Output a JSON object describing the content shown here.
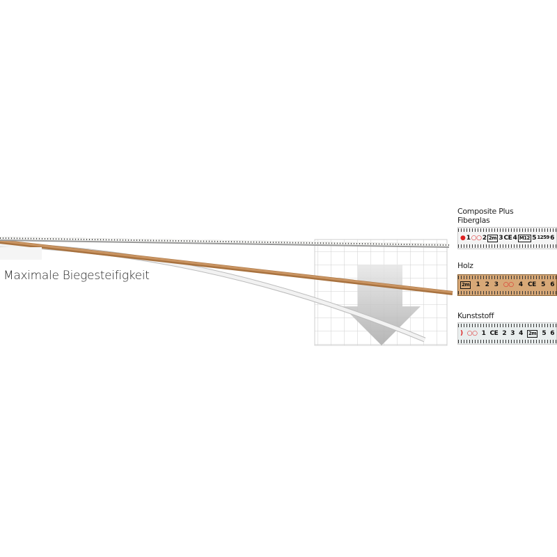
{
  "headline": "Maximale Biegesteifigkeit",
  "materials": [
    {
      "name_line1": "Composite Plus",
      "name_line2": "Fiberglas",
      "color": "#f4f4f4",
      "scale": [
        "●",
        "1",
        "○○",
        "2",
        "2m",
        "3",
        "CE",
        "4",
        "M12",
        "5",
        "1259",
        "6"
      ]
    },
    {
      "name_line1": "Holz",
      "color": "#d7a877",
      "scale": [
        "2m",
        "1",
        "2",
        "3",
        "○○",
        "4",
        "CE",
        "5",
        "6"
      ]
    },
    {
      "name_line1": "Kunststoff",
      "color": "#e9eeee",
      "scale": [
        ")",
        "○○",
        "1",
        "CE",
        "2",
        "3",
        "4",
        "2m",
        "5",
        "6"
      ]
    }
  ],
  "colors": {
    "wood": "#b8824f",
    "fiberglass": "#d9d9d6",
    "plastic": "#eeeeee",
    "grid": "#cfcfcf",
    "arrow": "#bdbdbd"
  }
}
